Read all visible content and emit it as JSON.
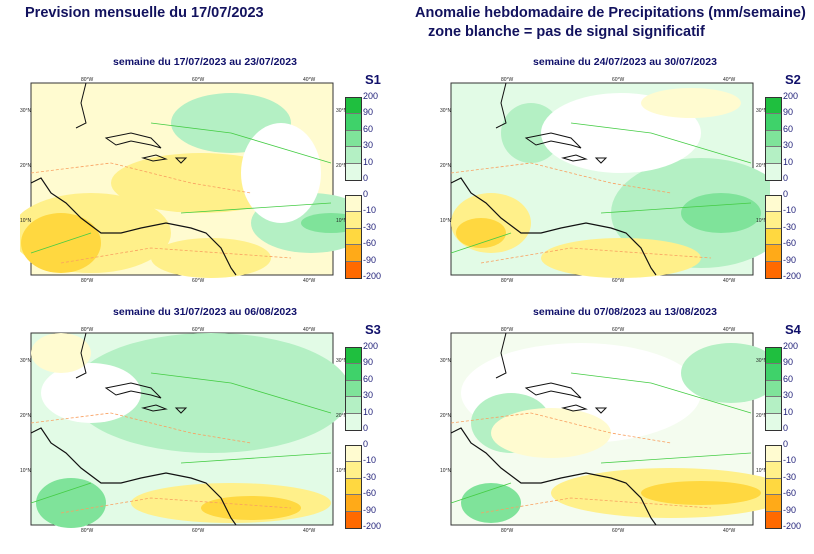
{
  "header": {
    "left_title": "Prevision mensuelle du 17/07/2023",
    "right_title_line1": "Anomalie hebdomadaire de Precipitations (mm/semaine)",
    "right_title_line2": "zone blanche = pas de signal significatif"
  },
  "axes": {
    "lon_ticks": [
      "80°W",
      "60°W",
      "40°W"
    ],
    "lat_ticks": [
      "30°N",
      "20°N",
      "10°N"
    ]
  },
  "colorbar": {
    "positive": {
      "labels": [
        "200",
        "90",
        "60",
        "30",
        "10",
        "0"
      ],
      "colors": [
        "#1fbf3f",
        "#3fd26a",
        "#7fe39a",
        "#b4f0c4",
        "#e2fbe6"
      ]
    },
    "negative": {
      "labels": [
        "0",
        "-10",
        "-30",
        "-60",
        "-90",
        "-200"
      ],
      "colors": [
        "#fffbd0",
        "#fff08a",
        "#ffd840",
        "#ffaa18",
        "#ff6a00"
      ]
    }
  },
  "panels": [
    {
      "label": "S1",
      "title": "semaine du 17/07/2023 au 23/07/2023"
    },
    {
      "label": "S2",
      "title": "semaine du 24/07/2023 au 30/07/2023"
    },
    {
      "label": "S3",
      "title": "semaine du 31/07/2023 au 06/08/2023"
    },
    {
      "label": "S4",
      "title": "semaine du 07/08/2023 au 13/08/2023"
    }
  ],
  "chart_data": {
    "type": "heatmap",
    "title": "Anomalie hebdomadaire de Precipitations (mm/semaine)",
    "legend_bins": [
      -200,
      -90,
      -60,
      -30,
      -10,
      0,
      10,
      30,
      60,
      90,
      200
    ],
    "maps": [
      "S1",
      "S2",
      "S3",
      "S4"
    ]
  }
}
